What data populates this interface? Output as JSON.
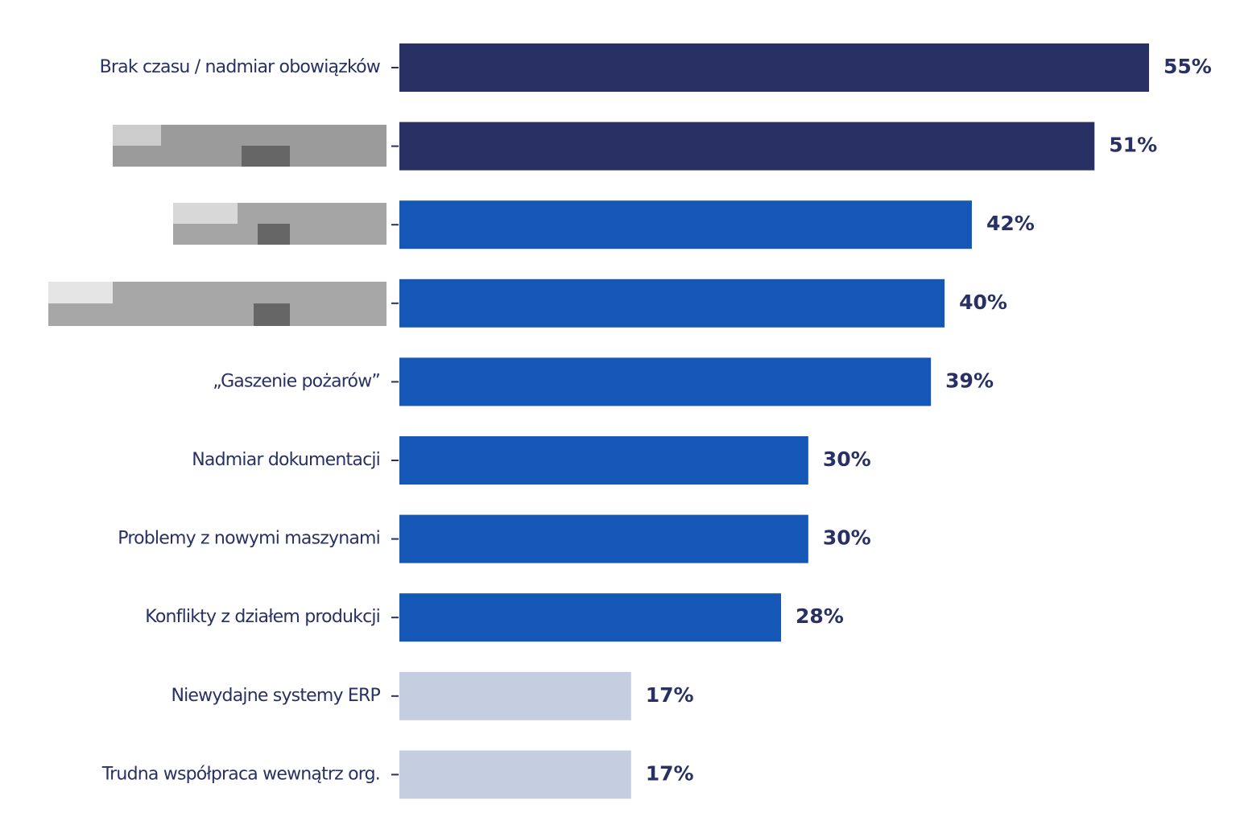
{
  "chart_data": {
    "type": "bar",
    "orientation": "horizontal",
    "categories": [
      "Brak czasu / nadmiar obowiązków",
      null,
      null,
      null,
      "„Gaszenie pożarów”",
      "Nadmiar dokumentacji",
      "Problemy z nowymi maszynami",
      "Konflikty z działem produkcji",
      "Niewydajne systemy ERP",
      "Trudna współpraca wewnątrz org."
    ],
    "values": [
      55,
      51,
      42,
      40,
      39,
      30,
      30,
      28,
      17,
      17
    ],
    "value_labels": [
      "55%",
      "51%",
      "42%",
      "40%",
      "39%",
      "30%",
      "30%",
      "28%",
      "17%",
      "17%"
    ],
    "colors": [
      "#283064",
      "#283064",
      "#1557b7",
      "#1557b7",
      "#1557b7",
      "#1557b7",
      "#1557b7",
      "#1557b7",
      "#c5cde0",
      "#c5cde0"
    ]
  }
}
